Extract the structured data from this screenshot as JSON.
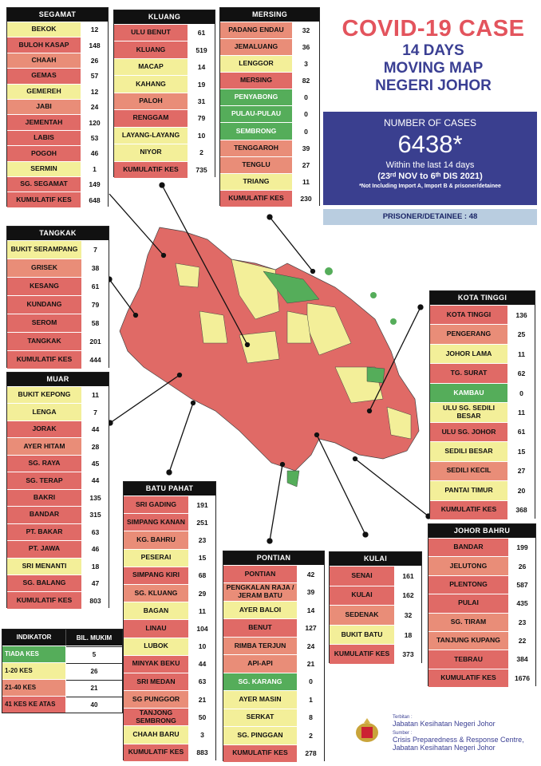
{
  "title": {
    "line1": "COVID-19 CASE",
    "line2": "14 DAYS",
    "line3": "MOVING MAP",
    "line4": "NEGERI JOHOR"
  },
  "summary": {
    "heading": "NUMBER OF CASES",
    "total": "6438*",
    "within": "Within the last 14 days",
    "range": "(23ʳᵈ NOV to 6ᵗʰ DIS 2021)",
    "note": "*Not Including Import A, Import B & prisoner/detainee",
    "prisoner": "PRISONER/DETAINEE : 48"
  },
  "colors": {
    "green": "#55ad5a",
    "yellow": "#f3ef99",
    "orange": "#e98d78",
    "red": "#e06a66",
    "navy": "#3a3f8f"
  },
  "districts": {
    "segamat": {
      "name": "SEGAMAT",
      "rows": [
        [
          "BEKOK",
          "12"
        ],
        [
          "BULOH KASAP",
          "148"
        ],
        [
          "CHAAH",
          "26"
        ],
        [
          "GEMAS",
          "57"
        ],
        [
          "GEMEREH",
          "12"
        ],
        [
          "JABI",
          "24"
        ],
        [
          "JEMENTAH",
          "120"
        ],
        [
          "LABIS",
          "53"
        ],
        [
          "POGOH",
          "46"
        ],
        [
          "SERMIN",
          "1"
        ],
        [
          "SG. SEGAMAT",
          "149"
        ]
      ],
      "total": [
        "KUMULATIF KES",
        "648"
      ]
    },
    "kluang": {
      "name": "KLUANG",
      "rows": [
        [
          "ULU BENUT",
          "61"
        ],
        [
          "KLUANG",
          "519"
        ],
        [
          "MACAP",
          "14"
        ],
        [
          "KAHANG",
          "19"
        ],
        [
          "PALOH",
          "31"
        ],
        [
          "RENGGAM",
          "79"
        ],
        [
          "LAYANG-LAYANG",
          "10"
        ],
        [
          "NIYOR",
          "2"
        ]
      ],
      "total": [
        "KUMULATIF KES",
        "735"
      ]
    },
    "mersing": {
      "name": "MERSING",
      "rows": [
        [
          "PADANG ENDAU",
          "32"
        ],
        [
          "JEMALUANG",
          "36"
        ],
        [
          "LENGGOR",
          "3"
        ],
        [
          "MERSING",
          "82"
        ],
        [
          "PENYABONG",
          "0"
        ],
        [
          "PULAU-PULAU",
          "0"
        ],
        [
          "SEMBRONG",
          "0"
        ],
        [
          "TENGGAROH",
          "39"
        ],
        [
          "TENGLU",
          "27"
        ],
        [
          "TRIANG",
          "11"
        ]
      ],
      "total": [
        "KUMULATIF KES",
        "230"
      ]
    },
    "tangkak": {
      "name": "TANGKAK",
      "rows": [
        [
          "BUKIT SERAMPANG",
          "7"
        ],
        [
          "GRISEK",
          "38"
        ],
        [
          "KESANG",
          "61"
        ],
        [
          "KUNDANG",
          "79"
        ],
        [
          "SEROM",
          "58"
        ],
        [
          "TANGKAK",
          "201"
        ]
      ],
      "total": [
        "KUMULATIF KES",
        "444"
      ]
    },
    "muar": {
      "name": "MUAR",
      "rows": [
        [
          "BUKIT KEPONG",
          "11"
        ],
        [
          "LENGA",
          "7"
        ],
        [
          "JORAK",
          "44"
        ],
        [
          "AYER HITAM",
          "28"
        ],
        [
          "SG. RAYA",
          "45"
        ],
        [
          "SG. TERAP",
          "44"
        ],
        [
          "BAKRI",
          "135"
        ],
        [
          "BANDAR",
          "315"
        ],
        [
          "PT. BAKAR",
          "63"
        ],
        [
          "PT. JAWA",
          "46"
        ],
        [
          "SRI MENANTI",
          "18"
        ],
        [
          "SG. BALANG",
          "47"
        ]
      ],
      "total": [
        "KUMULATIF KES",
        "803"
      ]
    },
    "kotatinggi": {
      "name": "KOTA TINGGI",
      "rows": [
        [
          "KOTA TINGGI",
          "136"
        ],
        [
          "PENGERANG",
          "25"
        ],
        [
          "JOHOR LAMA",
          "11"
        ],
        [
          "TG. SURAT",
          "62"
        ],
        [
          "KAMBAU",
          "0"
        ],
        [
          "ULU SG. SEDILI BESAR",
          "11"
        ],
        [
          "ULU  SG. JOHOR",
          "61"
        ],
        [
          "SEDILI BESAR",
          "15"
        ],
        [
          "SEDILI KECIL",
          "27"
        ],
        [
          "PANTAI TIMUR",
          "20"
        ]
      ],
      "total": [
        "KUMULATIF KES",
        "368"
      ]
    },
    "batupahat": {
      "name": "BATU PAHAT",
      "rows": [
        [
          "SRI GADING",
          "191"
        ],
        [
          "SIMPANG KANAN",
          "251"
        ],
        [
          "KG. BAHRU",
          "23"
        ],
        [
          "PESERAI",
          "15"
        ],
        [
          "SIMPANG KIRI",
          "68"
        ],
        [
          "SG. KLUANG",
          "29"
        ],
        [
          "BAGAN",
          "11"
        ],
        [
          "LINAU",
          "104"
        ],
        [
          "LUBOK",
          "10"
        ],
        [
          "MINYAK BEKU",
          "44"
        ],
        [
          "SRI MEDAN",
          "63"
        ],
        [
          "SG PUNGGOR",
          "21"
        ],
        [
          "TANJONG SEMBRONG",
          "50"
        ],
        [
          "CHAAH BARU",
          "3"
        ]
      ],
      "total": [
        "KUMULATIF KES",
        "883"
      ]
    },
    "pontian": {
      "name": "PONTIAN",
      "rows": [
        [
          "PONTIAN",
          "42"
        ],
        [
          "PENGKALAN RAJA / JERAM BATU",
          "39"
        ],
        [
          "AYER BALOI",
          "14"
        ],
        [
          "BENUT",
          "127"
        ],
        [
          "RIMBA TERJUN",
          "24"
        ],
        [
          "API-API",
          "21"
        ],
        [
          "SG. KARANG",
          "0"
        ],
        [
          "AYER MASIN",
          "1"
        ],
        [
          "SERKAT",
          "8"
        ],
        [
          "SG. PINGGAN",
          "2"
        ]
      ],
      "total": [
        "KUMULATIF KES",
        "278"
      ]
    },
    "kulai": {
      "name": "KULAI",
      "rows": [
        [
          "SENAI",
          "161"
        ],
        [
          "KULAI",
          "162"
        ],
        [
          "SEDENAK",
          "32"
        ],
        [
          "BUKIT BATU",
          "18"
        ]
      ],
      "total": [
        "KUMULATIF KES",
        "373"
      ]
    },
    "johorbahru": {
      "name": "JOHOR BAHRU",
      "rows": [
        [
          "BANDAR",
          "199"
        ],
        [
          "JELUTONG",
          "26"
        ],
        [
          "PLENTONG",
          "587"
        ],
        [
          "PULAI",
          "435"
        ],
        [
          "SG. TIRAM",
          "23"
        ],
        [
          "TANJUNG KUPANG",
          "22"
        ],
        [
          "TEBRAU",
          "384"
        ]
      ],
      "total": [
        "KUMULATIF KES",
        "1676"
      ]
    }
  },
  "legend": {
    "h1": "INDIKATOR",
    "h2": "BIL. MUKIM",
    "rows": [
      [
        "TIADA KES",
        "5"
      ],
      [
        "1-20 KES",
        "26"
      ],
      [
        "21-40 KES",
        "21"
      ],
      [
        "41 KES KE ATAS",
        "40"
      ]
    ]
  },
  "footer": {
    "l1": "Terbitan :",
    "l2": "Jabatan Kesihatan Negeri Johor",
    "l3": "Sumber :",
    "l4": "Crisis Preparedness & Response Centre,",
    "l5": "Jabatan Kesihatan Negeri Johor"
  }
}
